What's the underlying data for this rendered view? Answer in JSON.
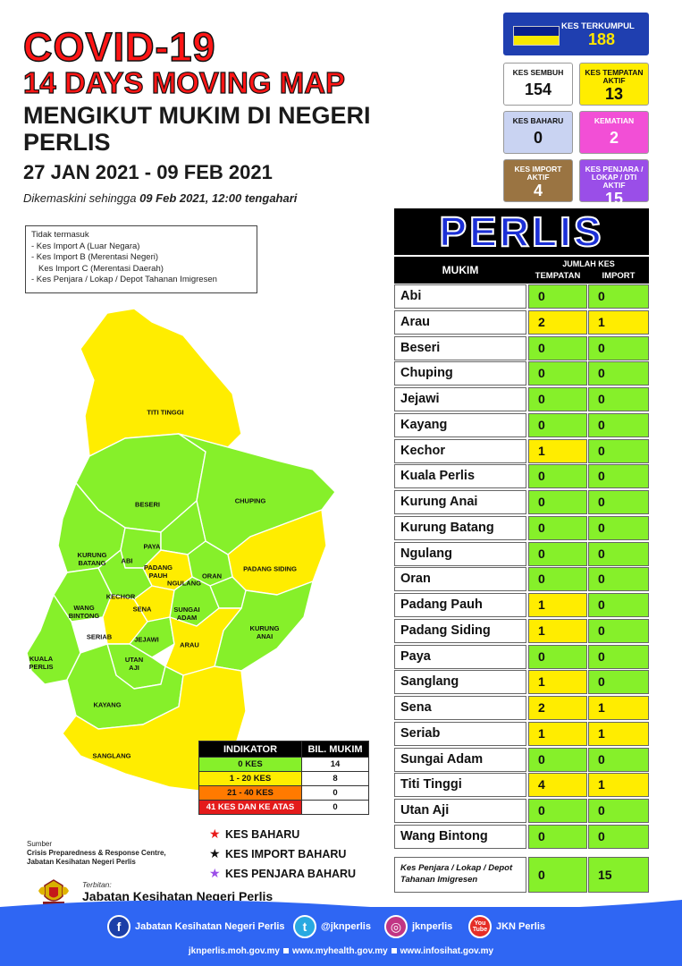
{
  "header": {
    "title_line1": "COVID-19",
    "title_line2": "14 DAYS MOVING MAP",
    "subtitle": "MENGIKUT MUKIM DI NEGERI PERLIS",
    "date_range": "27 JAN 2021 - 09 FEB 2021",
    "updated_prefix": "Dikemaskini sehingga ",
    "updated_value": "09 Feb 2021, 12:00 tengahari"
  },
  "stats": {
    "total": {
      "label": "KES TERKUMPUL",
      "value": "188"
    },
    "sembuh": {
      "label": "KES SEMBUH",
      "value": "154"
    },
    "tempatan_aktif": {
      "label": "KES TEMPATAN AKTIF",
      "value": "13"
    },
    "baharu": {
      "label": "KES BAHARU",
      "value": "0"
    },
    "kematian": {
      "label": "KEMATIAN",
      "value": "2"
    },
    "import_aktif": {
      "label": "KES IMPORT AKTIF",
      "value": "4"
    },
    "penjara_aktif": {
      "label": "KES PENJARA / LOKAP / DTI AKTIF",
      "value": "15"
    }
  },
  "exclusions": {
    "title": "Tidak termasuk",
    "items": [
      "- Kes Import A (Luar Negara)",
      "- Kes Import B (Merentasi Negeri)",
      "Kes Import C (Merentasi Daerah)",
      "- Kes Penjara / Lokap / Depot Tahanan Imigresen"
    ]
  },
  "map_labels": {
    "titi_tinggi": "TITI TINGGI",
    "beseri": "BESERI",
    "chuping": "CHUPING",
    "kurung_batang": "KURUNG BATANG",
    "paya": "PAYA",
    "abi": "ABI",
    "padang_pauh": "PADANG PAUH",
    "padang_siding": "PADANG SIDING",
    "ngulang": "NGULANG",
    "oran": "ORAN",
    "kechor": "KECHOR",
    "wang_bintong": "WANG BINTONG",
    "sena": "SENA",
    "sungai_adam": "SUNGAI ADAM",
    "kurung_anai": "KURUNG ANAI",
    "seriab": "SERIAB",
    "jejawi": "JEJAWI",
    "arau": "ARAU",
    "kuala_perlis": "KUALA PERLIS",
    "utan_aji": "UTAN AJI",
    "kayang": "KAYANG",
    "sanglang": "SANGLANG"
  },
  "map_colors": {
    "zero": "#86f02a",
    "low": "#ffed00",
    "mid": "#ff7a00",
    "high": "#e41b1b"
  },
  "indicator": {
    "header_label": "INDIKATOR",
    "header_count": "BIL. MUKIM",
    "rows": [
      {
        "label": "0 KES",
        "count": "14",
        "color": "#86f02a"
      },
      {
        "label": "1 - 20 KES",
        "count": "8",
        "color": "#ffed00"
      },
      {
        "label": "21 - 40 KES",
        "count": "0",
        "color": "#ff7a00"
      },
      {
        "label": "41 KES DAN KE ATAS",
        "count": "0",
        "color": "#e41b1b"
      }
    ]
  },
  "legend": [
    {
      "label": "KES BAHARU",
      "color": "#e81b1b"
    },
    {
      "label": "KES IMPORT BAHARU",
      "color": "#111111"
    },
    {
      "label": "KES PENJARA BAHARU",
      "color": "#9b4ee8"
    }
  ],
  "source": {
    "label": "Sumber",
    "line1": "Crisis Preparedness & Response Centre,",
    "line2": "Jabatan Kesihatan Negeri Perlis"
  },
  "publisher": {
    "label": "Terbitan:",
    "name": "Jabatan Kesihatan Negeri Perlis"
  },
  "table": {
    "state": "PERLIS",
    "col_mukim": "MUKIM",
    "col_jumlah": "JUMLAH KES",
    "col_tempatan": "TEMPATAN",
    "col_import": "IMPORT",
    "rows": [
      {
        "name": "Abi",
        "tempatan": "0",
        "import": "0"
      },
      {
        "name": "Arau",
        "tempatan": "2",
        "import": "1"
      },
      {
        "name": "Beseri",
        "tempatan": "0",
        "import": "0"
      },
      {
        "name": "Chuping",
        "tempatan": "0",
        "import": "0"
      },
      {
        "name": "Jejawi",
        "tempatan": "0",
        "import": "0"
      },
      {
        "name": "Kayang",
        "tempatan": "0",
        "import": "0"
      },
      {
        "name": "Kechor",
        "tempatan": "1",
        "import": "0"
      },
      {
        "name": "Kuala Perlis",
        "tempatan": "0",
        "import": "0"
      },
      {
        "name": "Kurung Anai",
        "tempatan": "0",
        "import": "0"
      },
      {
        "name": "Kurung Batang",
        "tempatan": "0",
        "import": "0"
      },
      {
        "name": "Ngulang",
        "tempatan": "0",
        "import": "0"
      },
      {
        "name": "Oran",
        "tempatan": "0",
        "import": "0"
      },
      {
        "name": "Padang Pauh",
        "tempatan": "1",
        "import": "0"
      },
      {
        "name": "Padang Siding",
        "tempatan": "1",
        "import": "0"
      },
      {
        "name": "Paya",
        "tempatan": "0",
        "import": "0"
      },
      {
        "name": "Sanglang",
        "tempatan": "1",
        "import": "0"
      },
      {
        "name": "Sena",
        "tempatan": "2",
        "import": "1"
      },
      {
        "name": "Seriab",
        "tempatan": "1",
        "import": "1"
      },
      {
        "name": "Sungai Adam",
        "tempatan": "0",
        "import": "0"
      },
      {
        "name": "Titi Tinggi",
        "tempatan": "4",
        "import": "1"
      },
      {
        "name": "Utan Aji",
        "tempatan": "0",
        "import": "0"
      },
      {
        "name": "Wang Bintong",
        "tempatan": "0",
        "import": "0"
      }
    ],
    "prison": {
      "name": "Kes Penjara / Lokap / Depot Tahanan Imigresen",
      "tempatan": "0",
      "import": "15"
    }
  },
  "footer": {
    "facebook": "Jabatan Kesihatan Negeri Perlis",
    "twitter": "@jknperlis",
    "instagram": "jknperlis",
    "youtube": "JKN Perlis",
    "youtube_icon_text": "You Tube",
    "url1": "jknperlis.moh.gov.my",
    "url2": "www.myhealth.gov.my",
    "url3": "www.infosihat.gov.my"
  }
}
